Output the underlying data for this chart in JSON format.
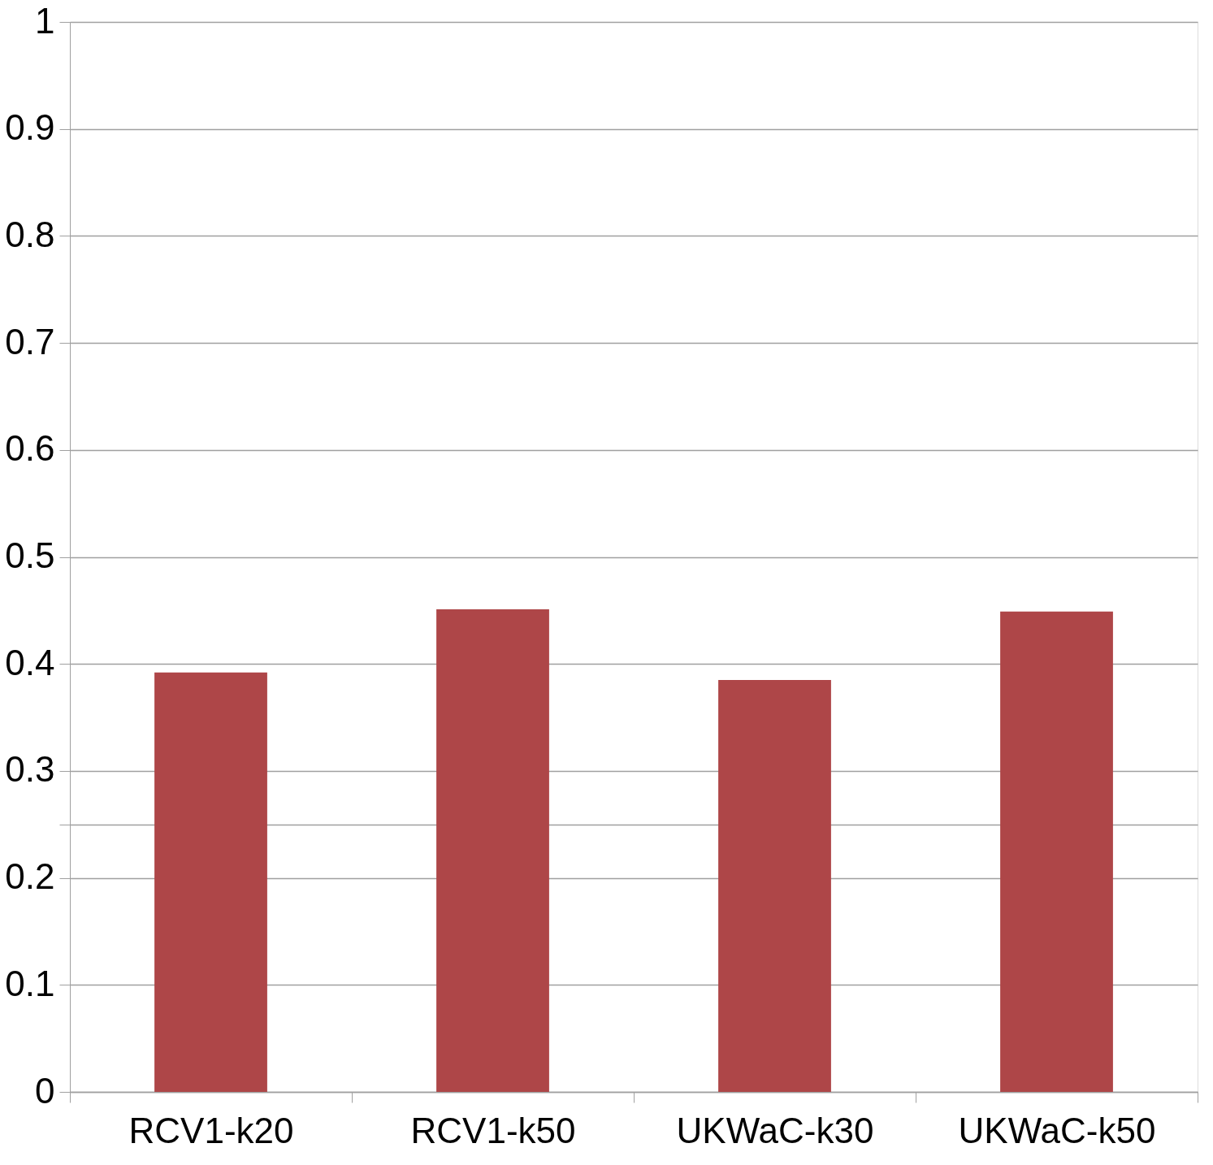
{
  "chart_data": {
    "type": "bar",
    "categories": [
      "RCV1-k20",
      "RCV1-k50",
      "UKWaC-k30",
      "UKWaC-k50"
    ],
    "values": [
      0.392,
      0.451,
      0.385,
      0.449
    ],
    "color": "#ae4648",
    "ylim": [
      0,
      1
    ],
    "yticks": [
      0,
      0.1,
      0.2,
      {
        "value": 0.25,
        "label": null
      },
      0.3,
      0.4,
      0.5,
      0.6,
      0.7,
      0.8,
      0.9,
      1
    ],
    "grid": "y"
  }
}
